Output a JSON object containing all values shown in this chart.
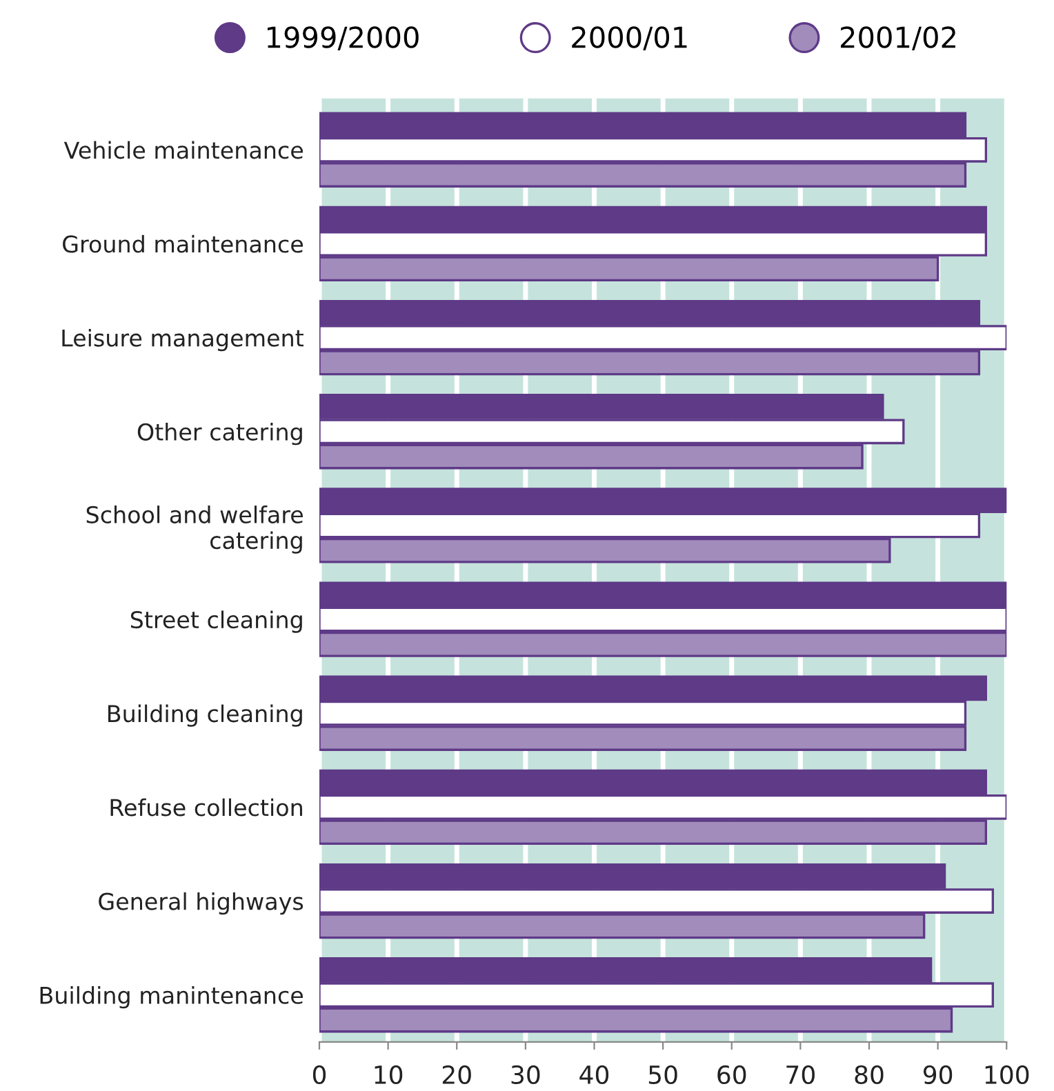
{
  "chart_data": {
    "type": "bar",
    "orientation": "horizontal",
    "categories": [
      "Vehicle maintenance",
      "Ground maintenance",
      "Leisure management",
      "Other catering",
      "School and welfare\ncatering",
      "Street cleaning",
      "Building cleaning",
      "Refuse collection",
      "General highways",
      "Building manintenance"
    ],
    "series": [
      {
        "name": "1999/2000",
        "color": "#5e3a87",
        "values": [
          94,
          97,
          96,
          82,
          100,
          100,
          97,
          97,
          91,
          89
        ]
      },
      {
        "name": "2000/01",
        "color": "#ffffff",
        "values": [
          97,
          97,
          100,
          85,
          96,
          100,
          94,
          100,
          98,
          98
        ]
      },
      {
        "name": "2001/02",
        "color": "#a18cbb",
        "values": [
          94,
          90,
          96,
          79,
          83,
          100,
          94,
          97,
          88,
          92
        ]
      }
    ],
    "xlim": [
      0,
      100
    ],
    "xticks": [
      0,
      10,
      20,
      30,
      40,
      50,
      60,
      70,
      80,
      90,
      100
    ],
    "bands": [
      {
        "axis": "x",
        "from": 0,
        "to": 100,
        "color": "#c5e3dc"
      }
    ],
    "grid": "x",
    "legend": "top"
  }
}
